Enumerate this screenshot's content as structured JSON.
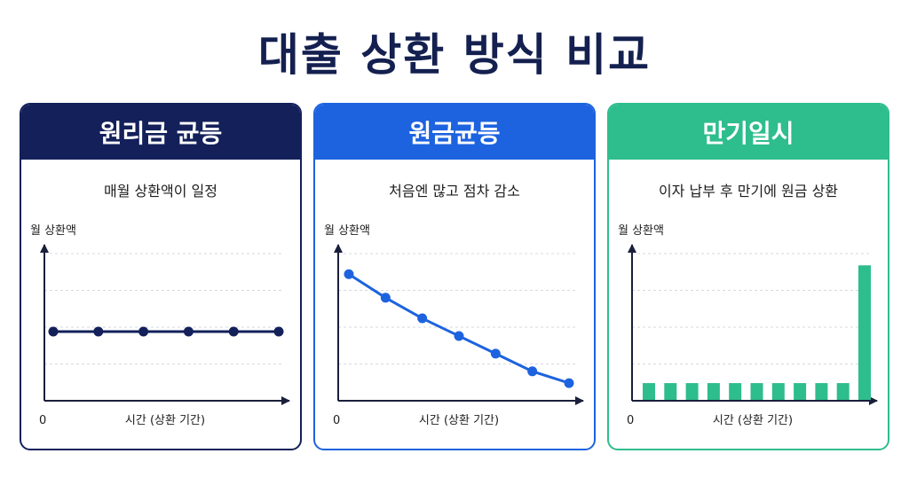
{
  "title": "대출 상환 방식 비교",
  "colors": {
    "title": "#14204f",
    "card1_accent": "#13205a",
    "card2_accent": "#1d63df",
    "card3_accent": "#2ebd8c",
    "axis": "#1a1f3a",
    "grid": "#d5d9e0"
  },
  "chart_data": [
    {
      "type": "line",
      "header": "원리금 균등",
      "subtitle": "매월 상환액이 일정",
      "ylabel": "월 상환액",
      "xlabel": "시간 (상환 기간)",
      "origin_label": "0",
      "ylim": [
        0,
        100
      ],
      "grid": true,
      "series": [
        {
          "values": [
            47,
            47,
            47,
            47,
            47,
            47
          ]
        }
      ]
    },
    {
      "type": "line",
      "header": "원금균등",
      "subtitle": "처음엔 많고 점차 감소",
      "ylabel": "월 상환액",
      "xlabel": "시간 (상환 기간)",
      "origin_label": "0",
      "ylim": [
        0,
        100
      ],
      "grid": true,
      "series": [
        {
          "values": [
            86,
            70,
            56,
            44,
            32,
            20,
            12
          ]
        }
      ]
    },
    {
      "type": "bar",
      "header": "만기일시",
      "subtitle": "이자 납부 후 만기에 원금 상환",
      "ylabel": "월 상환액",
      "xlabel": "시간 (상환 기간)",
      "origin_label": "0",
      "ylim": [
        0,
        100
      ],
      "grid": true,
      "series": [
        {
          "values": [
            12,
            12,
            12,
            12,
            12,
            12,
            12,
            12,
            12,
            12,
            92
          ]
        }
      ]
    }
  ]
}
